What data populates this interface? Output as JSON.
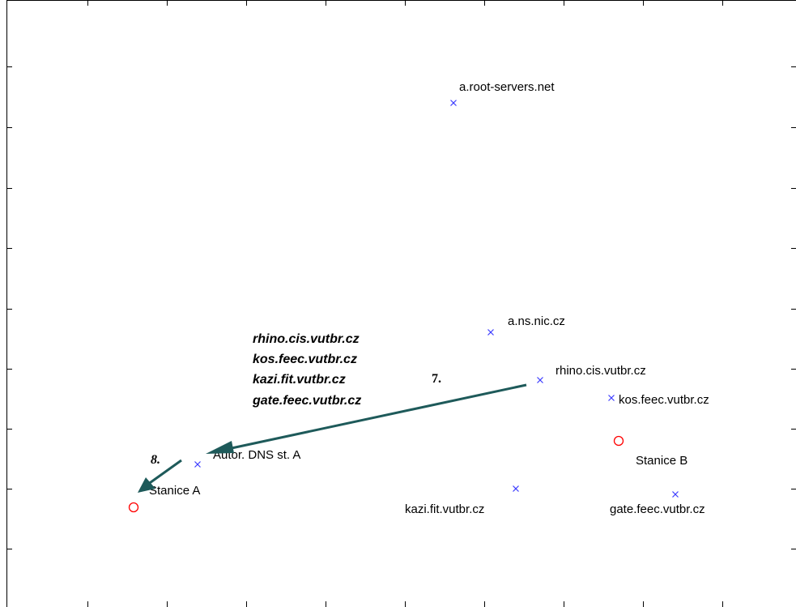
{
  "colors": {
    "server_marker": "#3c3cff",
    "station_marker": "#ff0000",
    "arrow": "#1e5a5a",
    "frame": "#000000"
  },
  "servers": [
    {
      "id": "root",
      "label": "a.root-servers.net"
    },
    {
      "id": "nsnic",
      "label": "a.ns.nic.cz"
    },
    {
      "id": "rhino",
      "label": "rhino.cis.vutbr.cz"
    },
    {
      "id": "kos",
      "label": "kos.feec.vutbr.cz"
    },
    {
      "id": "kazi",
      "label": "kazi.fit.vutbr.cz"
    },
    {
      "id": "gate",
      "label": "gate.feec.vutbr.cz"
    },
    {
      "id": "autordns",
      "label": "Autor. DNS st. A"
    }
  ],
  "stations": [
    {
      "id": "stanice-a",
      "label": "Stanice A"
    },
    {
      "id": "stanice-b",
      "label": "Stanice B"
    }
  ],
  "steps": [
    {
      "id": "step-7",
      "label": "7."
    },
    {
      "id": "step-8",
      "label": "8."
    }
  ],
  "response_list": [
    "rhino.cis.vutbr.cz",
    "kos.feec.vutbr.cz",
    "kazi.fit.vutbr.cz",
    "gate.feec.vutbr.cz"
  ]
}
